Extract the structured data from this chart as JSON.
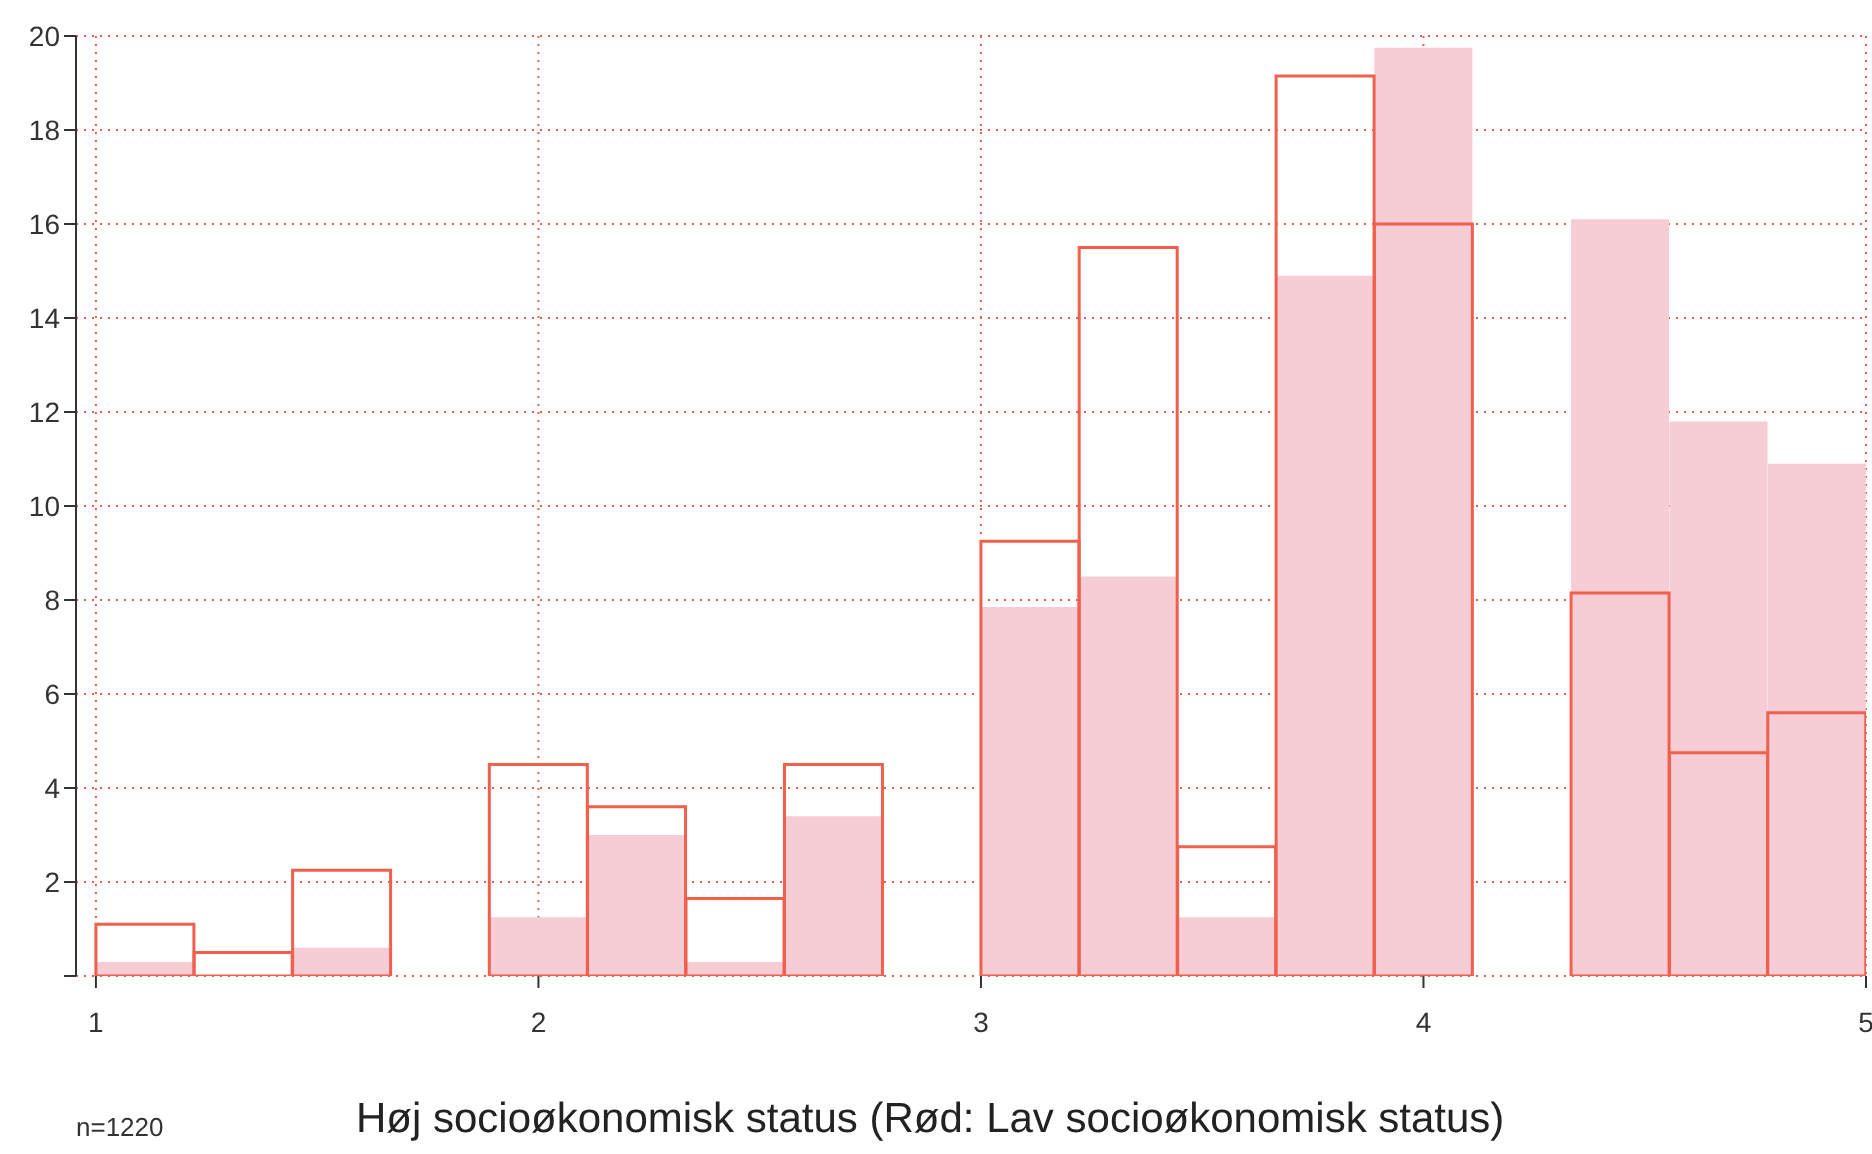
{
  "chart_data": {
    "type": "histogram",
    "xlabel": "Høj socioøkonomisk status (Rød: Lav socioøkonomisk status)",
    "annotations": [
      "n=1220"
    ],
    "bins": [
      1,
      1.222,
      1.444,
      1.667,
      1.889,
      2.111,
      2.333,
      2.556,
      2.778,
      3,
      3.222,
      3.444,
      3.667,
      3.889,
      4.111,
      4.333,
      4.556,
      4.778,
      5
    ],
    "series": [
      {
        "color": "#f7cdd5",
        "values": [
          0.3,
          0,
          0.6,
          0,
          1.25,
          3.0,
          0.3,
          3.4,
          0,
          7.85,
          8.5,
          1.25,
          14.9,
          19.75,
          0,
          16.1,
          11.8,
          10.9
        ]
      },
      {
        "color": "#f0604d",
        "values": [
          1.1,
          0.5,
          2.25,
          0,
          4.5,
          3.6,
          1.65,
          4.5,
          0,
          9.25,
          15.5,
          2.75,
          19.15,
          16.0,
          0,
          8.15,
          4.75,
          5.6
        ]
      }
    ],
    "xlim": [
      0.955,
      5
    ],
    "xticks": [
      1,
      2,
      3,
      4,
      5
    ],
    "ylim": [
      0,
      20
    ],
    "yticks": [
      {
        "value": 0,
        "label": null
      },
      2,
      4,
      6,
      8,
      10,
      12,
      14,
      16,
      18,
      20
    ],
    "grid": true
  }
}
